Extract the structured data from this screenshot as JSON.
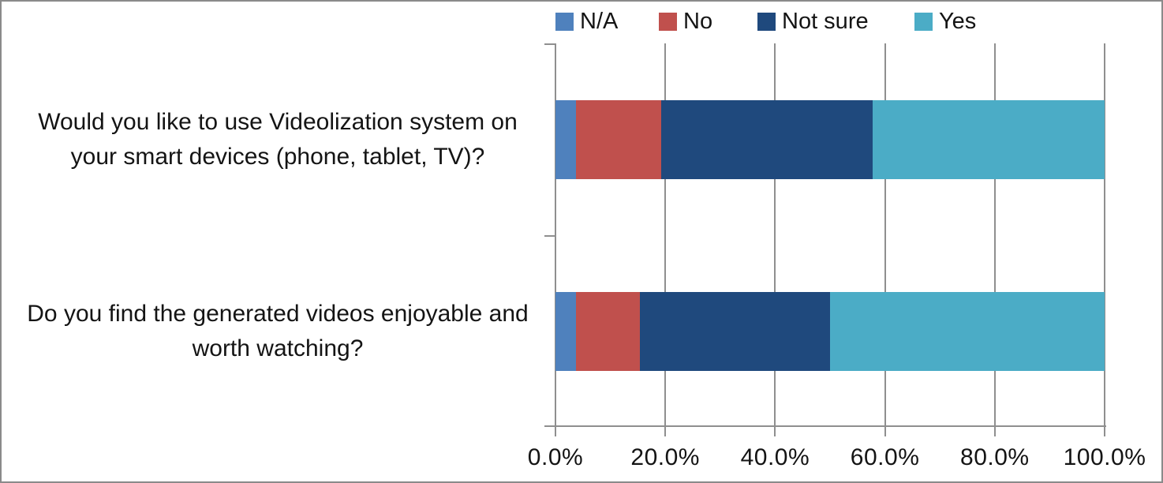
{
  "chart_data": {
    "type": "bar",
    "orientation": "horizontal",
    "stacked": true,
    "title": "",
    "xlabel": "",
    "ylabel": "",
    "xlim": [
      0,
      100
    ],
    "x_ticks": [
      "0.0%",
      "20.0%",
      "40.0%",
      "60.0%",
      "80.0%",
      "100.0%"
    ],
    "grid": true,
    "legend_position": "top",
    "categories": [
      "Would you like to use Videolization system on your smart devices (phone, tablet, TV)?",
      "Do you find the generated videos enjoyable and worth watching?"
    ],
    "series": [
      {
        "name": "N/A",
        "color": "#4f81bd",
        "values": [
          3.8,
          3.8
        ]
      },
      {
        "name": "No",
        "color": "#c0504d",
        "values": [
          15.4,
          11.5
        ]
      },
      {
        "name": "Not sure",
        "color": "#1f497d",
        "values": [
          38.5,
          34.6
        ]
      },
      {
        "name": "Yes",
        "color": "#4bacc6",
        "values": [
          42.3,
          50.0
        ]
      }
    ],
    "colors": {
      "axis": "#8f8f8f",
      "text": "#141414",
      "background": "#ffffff"
    }
  }
}
